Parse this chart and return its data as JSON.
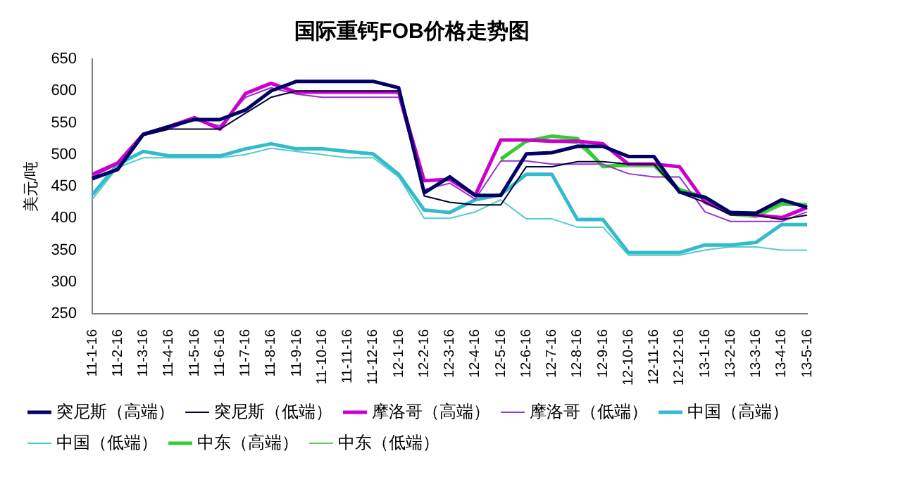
{
  "chart_data": {
    "type": "line",
    "title": "国际重钙FOB价格走势图",
    "ylabel": "美元/吨",
    "categories": [
      "11-1-16",
      "11-2-16",
      "11-3-16",
      "11-4-16",
      "11-5-16",
      "11-6-16",
      "11-7-16",
      "11-8-16",
      "11-9-16",
      "11-10-16",
      "11-11-16",
      "11-12-16",
      "12-1-16",
      "12-2-16",
      "12-3-16",
      "12-4-16",
      "12-5-16",
      "12-6-16",
      "12-7-16",
      "12-8-16",
      "12-9-16",
      "12-10-16",
      "12-11-16",
      "12-12-16",
      "13-1-16",
      "13-2-16",
      "13-3-16",
      "13-4-16",
      "13-5-16"
    ],
    "ylim": [
      250,
      650
    ],
    "yticks": [
      250,
      300,
      350,
      400,
      450,
      500,
      550,
      600,
      650
    ],
    "grid": false,
    "legend": "bottom",
    "marker": "none",
    "line_style": "solid",
    "series": [
      {
        "name": "突尼斯（高端）",
        "color": "#000066",
        "values": [
          462,
          477,
          532,
          544,
          555,
          555,
          570,
          600,
          615,
          615,
          615,
          615,
          605,
          440,
          465,
          436,
          436,
          501,
          503,
          513,
          513,
          497,
          497,
          441,
          433,
          409,
          408,
          429,
          417
        ]
      },
      {
        "name": "突尼斯（低端）",
        "color": "#000033",
        "values": [
          465,
          475,
          530,
          540,
          540,
          540,
          565,
          590,
          600,
          600,
          600,
          600,
          600,
          435,
          425,
          421,
          421,
          481,
          481,
          489,
          489,
          485,
          485,
          440,
          425,
          405,
          405,
          398,
          405
        ]
      },
      {
        "name": "摩洛哥（高端）",
        "color": "#cc00cc",
        "values": [
          469,
          487,
          532,
          544,
          558,
          540,
          596,
          612,
          598,
          598,
          598,
          598,
          598,
          459,
          461,
          436,
          523,
          523,
          521,
          521,
          517,
          485,
          485,
          481,
          425,
          409,
          405,
          401,
          417
        ]
      },
      {
        "name": "摩洛哥（低端）",
        "color": "#9933cc",
        "values": [
          465,
          485,
          530,
          540,
          555,
          545,
          590,
          605,
          595,
          590,
          590,
          590,
          590,
          445,
          455,
          430,
          490,
          490,
          485,
          485,
          485,
          470,
          465,
          465,
          410,
          395,
          395,
          395,
          410
        ]
      },
      {
        "name": "中国（高端）",
        "color": "#33bbcc",
        "values": [
          437,
          485,
          505,
          498,
          498,
          498,
          509,
          517,
          509,
          509,
          505,
          501,
          469,
          413,
          409,
          429,
          437,
          469,
          469,
          398,
          398,
          346,
          346,
          346,
          358,
          358,
          362,
          390,
          390
        ]
      },
      {
        "name": "中国（低端）",
        "color": "#55cccc",
        "values": [
          430,
          480,
          495,
          495,
          495,
          495,
          500,
          510,
          505,
          500,
          495,
          495,
          465,
          400,
          400,
          410,
          429,
          399,
          399,
          386,
          386,
          342,
          342,
          342,
          350,
          355,
          355,
          350,
          350
        ]
      },
      {
        "name": "中东（高端）",
        "color": "#33cc33",
        "values": [
          null,
          null,
          null,
          null,
          null,
          null,
          null,
          null,
          null,
          null,
          null,
          null,
          null,
          null,
          null,
          null,
          493,
          521,
          529,
          525,
          481,
          485,
          485,
          445,
          433,
          409,
          405,
          424,
          421
        ]
      },
      {
        "name": "中东（低端）",
        "color": "#66cc66",
        "values": [
          null,
          null,
          null,
          null,
          null,
          null,
          null,
          null,
          null,
          null,
          null,
          null,
          null,
          null,
          null,
          null,
          490,
          521,
          521,
          517,
          481,
          481,
          481,
          441,
          429,
          405,
          401,
          420,
          420
        ]
      }
    ]
  }
}
